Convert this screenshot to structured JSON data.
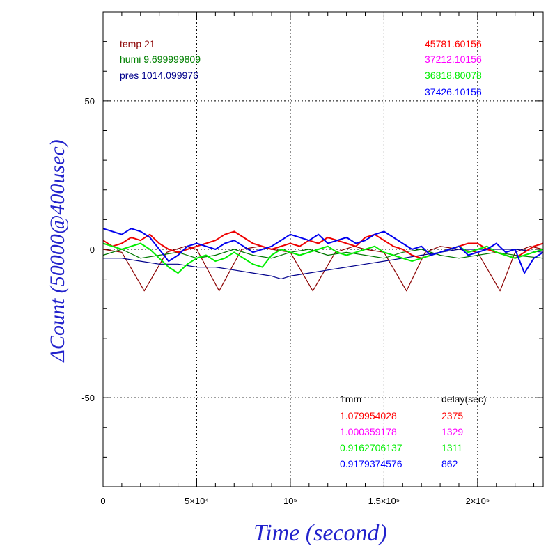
{
  "chart_data": {
    "type": "line",
    "title": "",
    "xlabel": "Time (second)",
    "ylabel": "ΔCount (50000@400usec)",
    "xlim": [
      0,
      235000
    ],
    "ylim": [
      -80,
      80
    ],
    "x_ticks": [
      {
        "value": 0,
        "label": "0"
      },
      {
        "value": 50000,
        "label": "5×10⁴"
      },
      {
        "value": 100000,
        "label": "10⁵"
      },
      {
        "value": 150000,
        "label": "1.5×10⁵"
      },
      {
        "value": 200000,
        "label": "2×10⁵"
      }
    ],
    "y_ticks": [
      {
        "value": 50,
        "label": "50"
      },
      {
        "value": 0,
        "label": "0"
      },
      {
        "value": -50,
        "label": "-50"
      }
    ],
    "grid": true,
    "env_legend": [
      {
        "text": "temp 21",
        "color": "#8b0000"
      },
      {
        "text": "humi 9.699999809",
        "color": "#008000"
      },
      {
        "text": "pres 1014.099976",
        "color": "#00008b"
      }
    ],
    "count_legend": [
      {
        "text": "45781.60156",
        "color": "#ff0000"
      },
      {
        "text": "37212.10156",
        "color": "#ff00ff"
      },
      {
        "text": "36818.80078",
        "color": "#00ee00"
      },
      {
        "text": "37426.10156",
        "color": "#0000ff"
      }
    ],
    "table_headers": {
      "col1": "1mm",
      "col2": "delay(sec)"
    },
    "table_rows": [
      {
        "v1": "1.079954028",
        "v2": "2375",
        "color": "#ff0000"
      },
      {
        "v1": "1.000359178",
        "v2": "1329",
        "color": "#ff00ff"
      },
      {
        "v1": "0.9162706137",
        "v2": "1311",
        "color": "#00ee00"
      },
      {
        "v1": "0.9179374576",
        "v2": "862",
        "color": "#0000ff"
      }
    ],
    "series": [
      {
        "color": "#8b0000",
        "x": [
          0,
          10000,
          22000,
          34000,
          44000,
          50000,
          62000,
          74000,
          84000,
          90000,
          100000,
          112000,
          124000,
          134000,
          140000,
          150000,
          162000,
          172000,
          180000,
          190000,
          200000,
          212000,
          220000,
          228000,
          235000
        ],
        "y": [
          0,
          -1,
          -14,
          -1,
          1,
          0,
          -14,
          0,
          1,
          0,
          -1,
          -14,
          -1,
          1,
          0,
          -1,
          -14,
          -1,
          1,
          0,
          -1,
          -14,
          -1,
          1,
          0
        ]
      },
      {
        "color": "#00008b",
        "x": [
          0,
          10000,
          20000,
          30000,
          40000,
          50000,
          60000,
          70000,
          80000,
          90000,
          95000,
          100000,
          110000,
          120000,
          130000,
          140000,
          150000,
          160000,
          170000,
          180000,
          190000,
          200000,
          210000,
          220000,
          235000
        ],
        "y": [
          -3,
          -3,
          -4,
          -5,
          -5,
          -6,
          -6,
          -7,
          -8,
          -9,
          -10,
          -9,
          -8,
          -7,
          -6,
          -5,
          -4,
          -3,
          -2,
          -1,
          0,
          0,
          0,
          0,
          -1
        ]
      },
      {
        "color": "#007700",
        "x": [
          0,
          10000,
          20000,
          30000,
          40000,
          50000,
          60000,
          70000,
          80000,
          90000,
          100000,
          110000,
          120000,
          130000,
          140000,
          150000,
          160000,
          170000,
          180000,
          190000,
          200000,
          210000,
          220000,
          235000
        ],
        "y": [
          -2,
          0,
          -3,
          -2,
          -1,
          -3,
          -2,
          0,
          -2,
          -3,
          -1,
          0,
          -2,
          -1,
          -2,
          -3,
          -1,
          0,
          -2,
          -3,
          -2,
          -1,
          -2,
          -3
        ]
      },
      {
        "color": "#ee0000",
        "x": [
          0,
          5000,
          10000,
          15000,
          20000,
          25000,
          30000,
          35000,
          40000,
          45000,
          50000,
          55000,
          60000,
          65000,
          70000,
          75000,
          80000,
          85000,
          90000,
          95000,
          100000,
          105000,
          110000,
          115000,
          120000,
          125000,
          130000,
          135000,
          140000,
          145000,
          150000,
          155000,
          160000,
          165000,
          170000,
          175000,
          180000,
          185000,
          190000,
          195000,
          200000,
          205000,
          210000,
          215000,
          220000,
          225000,
          230000,
          235000
        ],
        "y": [
          3,
          1,
          2,
          4,
          3,
          5,
          2,
          0,
          -1,
          0,
          1,
          2,
          3,
          5,
          6,
          4,
          2,
          1,
          0,
          1,
          2,
          1,
          3,
          2,
          4,
          3,
          2,
          1,
          4,
          5,
          3,
          1,
          0,
          -2,
          -3,
          -2,
          -1,
          0,
          1,
          2,
          2,
          0,
          -1,
          -2,
          -3,
          -1,
          1,
          2
        ]
      },
      {
        "color": "#00ee00",
        "x": [
          0,
          5000,
          10000,
          15000,
          20000,
          25000,
          30000,
          35000,
          40000,
          45000,
          50000,
          55000,
          60000,
          65000,
          70000,
          75000,
          80000,
          85000,
          90000,
          95000,
          100000,
          105000,
          110000,
          115000,
          120000,
          125000,
          130000,
          135000,
          140000,
          145000,
          150000,
          155000,
          160000,
          165000,
          170000,
          175000,
          180000,
          185000,
          190000,
          195000,
          200000,
          205000,
          210000,
          215000,
          220000,
          225000,
          230000,
          235000
        ],
        "y": [
          2,
          1,
          0,
          1,
          2,
          0,
          -3,
          -6,
          -8,
          -5,
          -3,
          -2,
          -4,
          -3,
          -1,
          -3,
          -5,
          -6,
          -2,
          0,
          -1,
          -2,
          -1,
          0,
          1,
          -1,
          -2,
          -1,
          0,
          1,
          -1,
          -2,
          -3,
          -4,
          -3,
          -2,
          -1,
          0,
          1,
          -1,
          0,
          1,
          -1,
          -2,
          -3,
          -2,
          -1,
          0
        ]
      },
      {
        "color": "#0000ee",
        "x": [
          0,
          5000,
          10000,
          15000,
          20000,
          25000,
          30000,
          35000,
          40000,
          45000,
          50000,
          55000,
          60000,
          65000,
          70000,
          75000,
          80000,
          85000,
          90000,
          95000,
          100000,
          105000,
          110000,
          115000,
          120000,
          125000,
          130000,
          135000,
          140000,
          145000,
          150000,
          155000,
          160000,
          165000,
          170000,
          175000,
          180000,
          185000,
          190000,
          195000,
          200000,
          205000,
          210000,
          215000,
          220000,
          225000,
          230000,
          235000
        ],
        "y": [
          7,
          6,
          5,
          7,
          6,
          4,
          0,
          -4,
          -2,
          1,
          2,
          1,
          0,
          2,
          3,
          1,
          -1,
          0,
          1,
          3,
          5,
          4,
          3,
          5,
          2,
          3,
          4,
          2,
          3,
          5,
          6,
          4,
          2,
          0,
          1,
          -2,
          -1,
          0,
          1,
          -2,
          -1,
          0,
          2,
          -1,
          0,
          -8,
          -3,
          -1
        ]
      }
    ]
  }
}
